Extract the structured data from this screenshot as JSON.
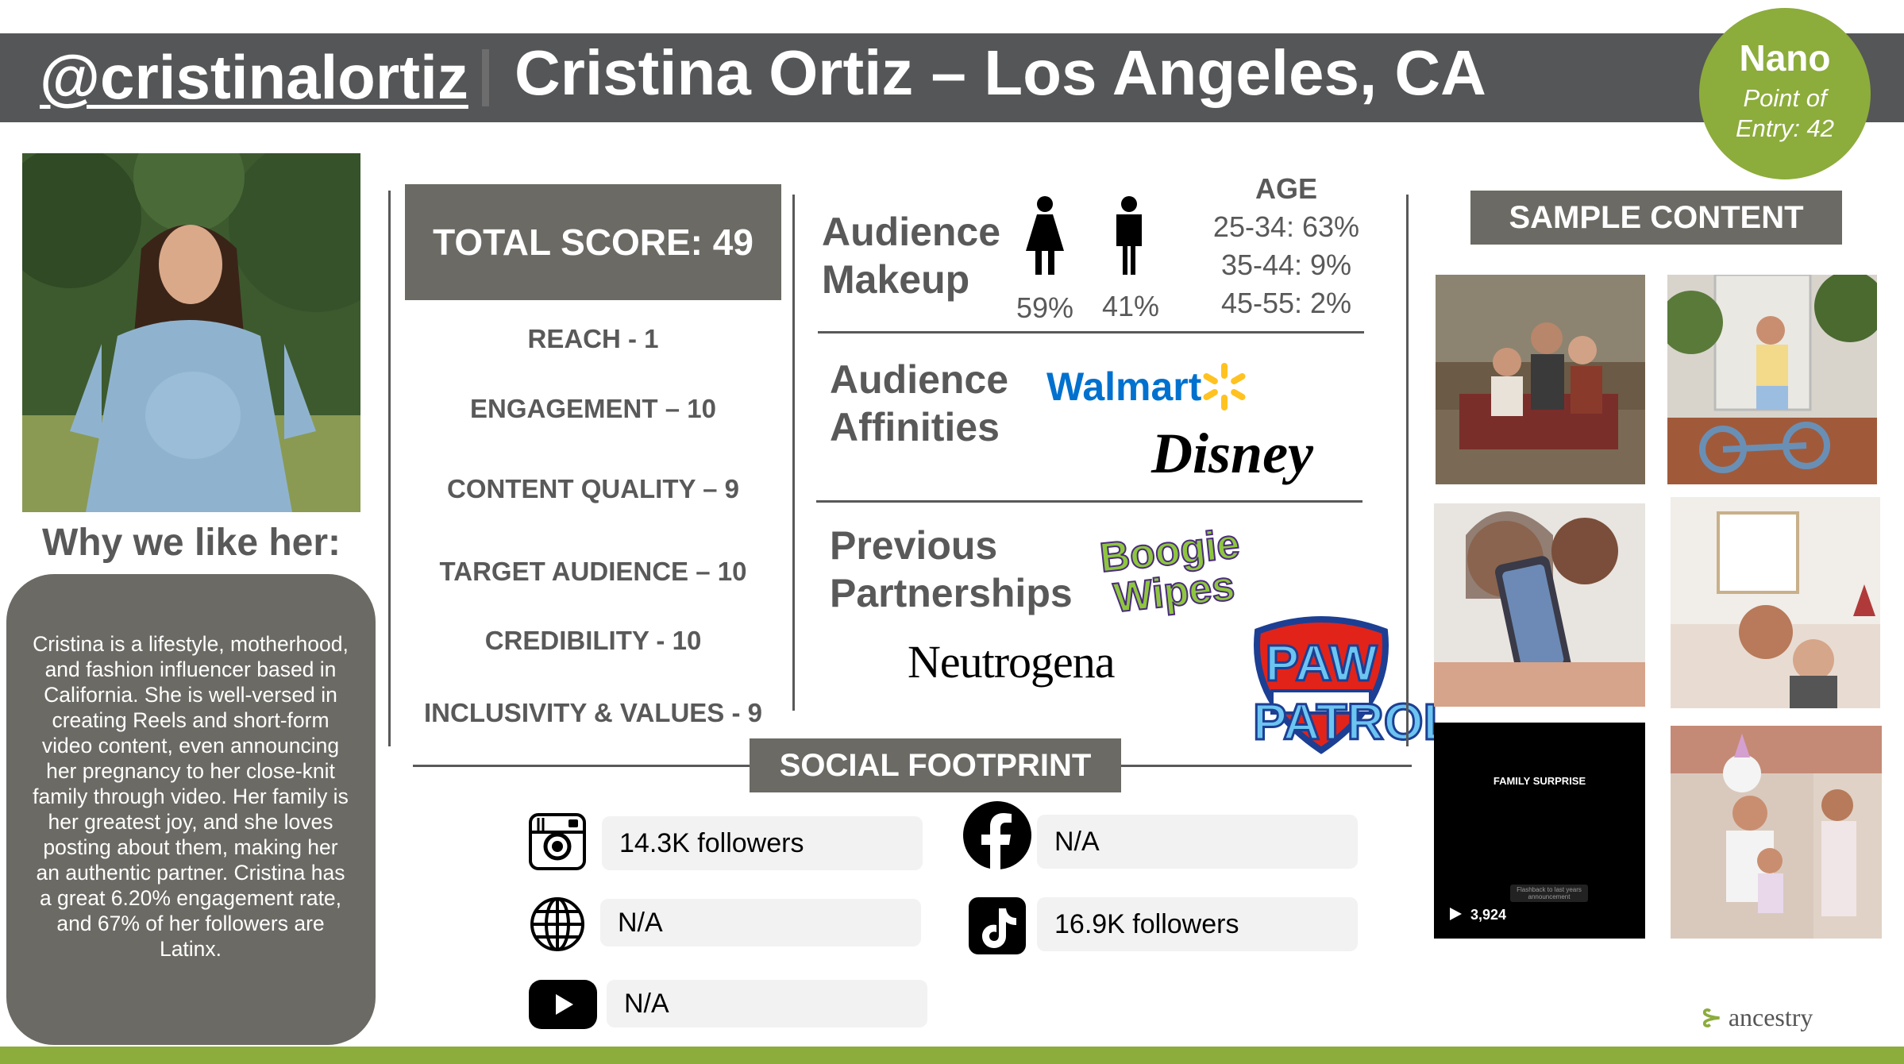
{
  "header": {
    "handle": "@cristinalortiz",
    "title": "Cristina Ortiz – Los Angeles, CA"
  },
  "tier": {
    "name": "Nano",
    "line1": "Point of",
    "line2": "Entry: 42"
  },
  "why": {
    "heading": "Why we like her:",
    "bio": "Cristina is a lifestyle, motherhood, and fashion influencer based in California. She is well-versed in creating Reels and short-form video content, even announcing her pregnancy to her close-knit family through video. Her family is her greatest joy, and she loves posting about them, making her an authentic partner. Cristina has a great 6.20% engagement rate, and 67% of her followers are Latinx."
  },
  "score": {
    "total": "TOTAL SCORE: 49",
    "items": [
      "REACH - 1",
      "ENGAGEMENT – 10",
      "CONTENT QUALITY – 9",
      "TARGET AUDIENCE – 10",
      "CREDIBILITY - 10",
      "INCLUSIVITY & VALUES - 9"
    ]
  },
  "audience": {
    "title_line1": "Audience",
    "title_line2": "Makeup",
    "female_pct": "59%",
    "male_pct": "41%",
    "age_label": "AGE",
    "ages": [
      "25-34: 63%",
      "35-44: 9%",
      "45-55: 2%"
    ]
  },
  "affinities": {
    "title_line1": "Audience",
    "title_line2": "Affinities",
    "brands": [
      "Walmart",
      "Disney"
    ]
  },
  "partnerships": {
    "title_line1": "Previous",
    "title_line2": "Partnerships",
    "brands": [
      "Boogie Wipes",
      "Neutrogena",
      "PAW PATROL"
    ]
  },
  "social": {
    "label": "SOCIAL FOOTPRINT",
    "instagram": "14.3K followers",
    "facebook": "N/A",
    "website": "N/A",
    "tiktok": "16.9K followers",
    "youtube": "N/A"
  },
  "sample": {
    "label": "SAMPLE CONTENT",
    "video_title": "FAMILY SURPRISE",
    "video_caption": "Flashback to last years announcement",
    "video_views": "3,924"
  },
  "footer": {
    "brand": "ancestry"
  },
  "colors": {
    "header_bg": "#555657",
    "panel_bg": "#6b6a64",
    "accent_green": "#8cac3c",
    "walmart_blue": "#0071ce",
    "walmart_yellow": "#ffc220"
  }
}
